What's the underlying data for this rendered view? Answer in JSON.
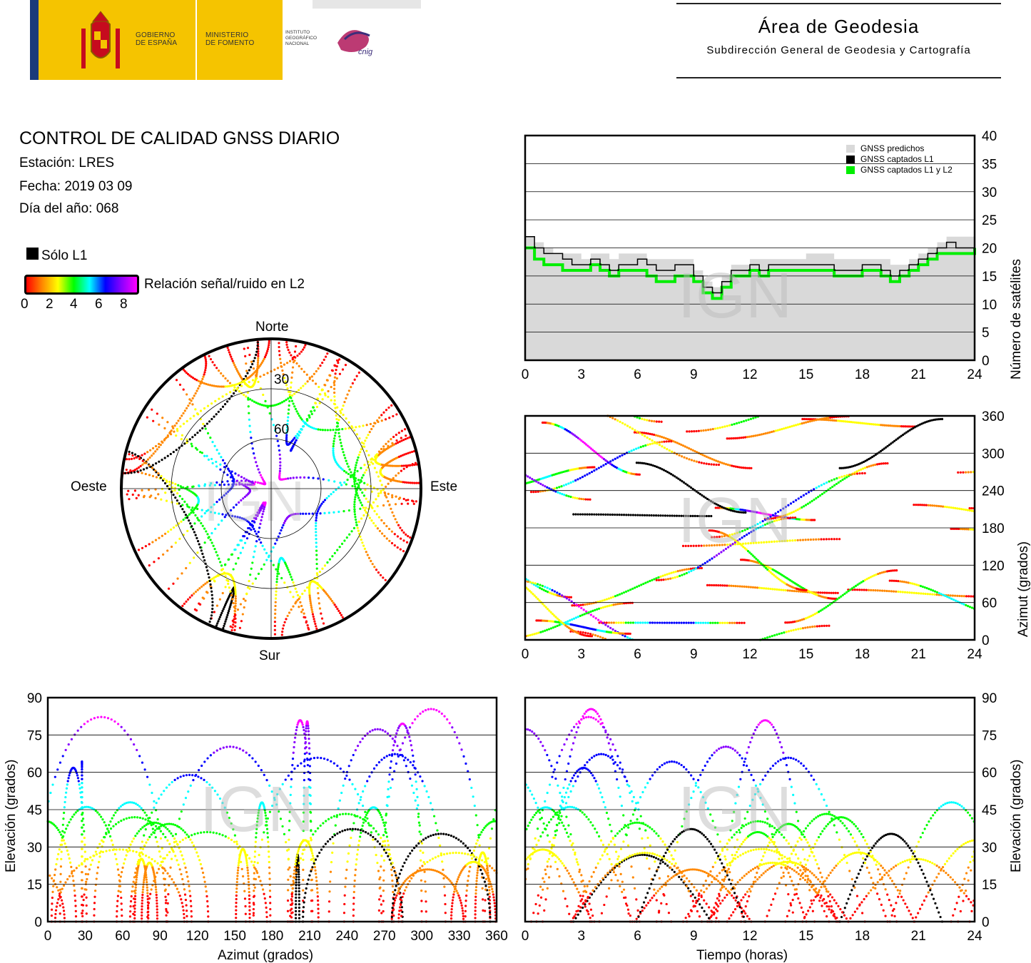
{
  "header": {
    "gobierno": "GOBIERNO\nDE ESPAÑA",
    "ministerio": "MINISTERIO\nDE FOMENTO",
    "instituto": "INSTITUTO\nGEOGRÁFICO\nNACIONAL",
    "cnig": "cnig",
    "area_title": "Área de Geodesia",
    "area_subtitle": "Subdirección General de Geodesia y Cartografía"
  },
  "report": {
    "title": "CONTROL DE CALIDAD GNSS DIARIO",
    "station": "Estación: LRES",
    "date": "Fecha: 2019 03 09",
    "doy": "Día del año: 068"
  },
  "legend": {
    "l1_only": "Sólo L1",
    "snr_label": "Relación señal/ruido en L2",
    "snr_ticks": [
      "0",
      "2",
      "4",
      "6",
      "8"
    ]
  },
  "watermark": "IGN",
  "colors": {
    "black": "#000000",
    "predicted": "#d9d9d9",
    "l1l2": "#00ee00",
    "snr_scale": [
      "#ff0000",
      "#ff8800",
      "#ffff00",
      "#00ff00",
      "#00ffff",
      "#0000ff",
      "#8800ff",
      "#ff00ff"
    ]
  },
  "chart_data": [
    {
      "type": "polar",
      "id": "skyplot",
      "directions": {
        "north": "Norte",
        "south": "Sur",
        "east": "Este",
        "west": "Oeste"
      },
      "elevation_ticks": [
        "30",
        "60"
      ],
      "ring_elevations": [
        0,
        30,
        60
      ],
      "max_zenith_cut": 40
    },
    {
      "type": "area",
      "id": "satellites",
      "ylabel": "Número de satélites",
      "ylim": [
        0,
        40
      ],
      "xlim": [
        0,
        24
      ],
      "x_ticks": [
        "0",
        "3",
        "6",
        "9",
        "12",
        "15",
        "18",
        "21",
        "24"
      ],
      "y_ticks": [
        "0",
        "5",
        "10",
        "15",
        "20",
        "25",
        "30",
        "35",
        "40"
      ],
      "grid": true,
      "legend": [
        "GNSS predichos",
        "GNSS captados L1",
        "GNSS captados L1 y L2"
      ],
      "legend_position": "top-right",
      "x": [
        0,
        0.5,
        1,
        1.5,
        2,
        2.5,
        3,
        3.5,
        4,
        4.5,
        5,
        5.5,
        6,
        6.5,
        7,
        7.5,
        8,
        8.5,
        9,
        9.5,
        10,
        10.5,
        11,
        11.5,
        12,
        12.5,
        13,
        13.5,
        14,
        14.5,
        15,
        15.5,
        16,
        16.5,
        17,
        17.5,
        18,
        18.5,
        19,
        19.5,
        20,
        20.5,
        21,
        21.5,
        22,
        22.5,
        23,
        23.5,
        24
      ],
      "series": [
        {
          "name": "GNSS predichos",
          "values": [
            22,
            21,
            20,
            19,
            19,
            19,
            18,
            19,
            19,
            18,
            19,
            19,
            19,
            18,
            18,
            18,
            18,
            18,
            16,
            14,
            13,
            15,
            17,
            17,
            18,
            18,
            18,
            18,
            18,
            18,
            19,
            19,
            19,
            18,
            18,
            18,
            18,
            18,
            18,
            17,
            17,
            18,
            19,
            20,
            21,
            22,
            22,
            22,
            22
          ]
        },
        {
          "name": "GNSS captados L1",
          "values": [
            22,
            20,
            19,
            19,
            18,
            17,
            17,
            18,
            17,
            16,
            17,
            17,
            18,
            17,
            16,
            16,
            17,
            17,
            15,
            13,
            12,
            14,
            16,
            16,
            17,
            16,
            17,
            17,
            17,
            17,
            17,
            17,
            17,
            16,
            16,
            16,
            17,
            17,
            16,
            15,
            16,
            17,
            18,
            19,
            20,
            21,
            20,
            20,
            21
          ]
        },
        {
          "name": "GNSS captados L1 y L2",
          "values": [
            20,
            18,
            17,
            17,
            16,
            16,
            16,
            17,
            16,
            15,
            16,
            16,
            16,
            15,
            14,
            14,
            15,
            15,
            14,
            12,
            11,
            13,
            15,
            15,
            16,
            15,
            16,
            16,
            16,
            16,
            16,
            16,
            16,
            15,
            15,
            15,
            16,
            16,
            15,
            14,
            15,
            16,
            17,
            18,
            19,
            19,
            19,
            19,
            20
          ]
        }
      ]
    },
    {
      "type": "scatter",
      "id": "azimuth-time",
      "ylabel": "Azimut (grados)",
      "ylim": [
        0,
        360
      ],
      "xlim": [
        0,
        24
      ],
      "x_ticks": [
        "0",
        "3",
        "6",
        "9",
        "12",
        "15",
        "18",
        "21",
        "24"
      ],
      "y_ticks": [
        "0",
        "60",
        "120",
        "180",
        "240",
        "300",
        "360"
      ],
      "grid": true
    },
    {
      "type": "scatter",
      "id": "elevation-azimuth",
      "xlabel": "Azimut (grados)",
      "ylabel": "Elevación (grados)",
      "xlim": [
        0,
        360
      ],
      "ylim": [
        0,
        90
      ],
      "x_ticks": [
        "0",
        "30",
        "60",
        "90",
        "120",
        "150",
        "180",
        "210",
        "240",
        "270",
        "300",
        "330",
        "360"
      ],
      "y_ticks": [
        "0",
        "15",
        "30",
        "45",
        "60",
        "75",
        "90"
      ],
      "grid": true
    },
    {
      "type": "scatter",
      "id": "elevation-time",
      "xlabel": "Tiempo (horas)",
      "ylabel": "Elevación (grados)",
      "xlim": [
        0,
        24
      ],
      "ylim": [
        0,
        90
      ],
      "x_ticks": [
        "0",
        "3",
        "6",
        "9",
        "12",
        "15",
        "18",
        "21",
        "24"
      ],
      "y_ticks": [
        "0",
        "15",
        "30",
        "45",
        "60",
        "75",
        "90"
      ],
      "grid": true
    }
  ]
}
